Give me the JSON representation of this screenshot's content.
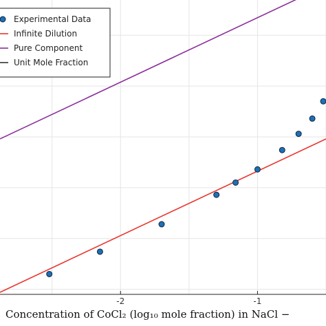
{
  "chart_data": {
    "type": "scatter",
    "xlabel": "Concentration of CoCl₂ (log₁₀ mole fraction) in NaCl −",
    "ylabel": "",
    "title": "",
    "grid": true,
    "legend_position": "top-left",
    "x_ticks": [
      "-2",
      "-1"
    ],
    "series": [
      {
        "name": "Experimental Data",
        "kind": "scatter",
        "color": "#1f6fb5",
        "edge_color": "#0b2740",
        "points": [
          [
            -2.52,
            -2.35
          ],
          [
            -2.15,
            -2.13
          ],
          [
            -1.7,
            -1.86
          ],
          [
            -1.3,
            -1.57
          ],
          [
            -1.16,
            -1.45
          ],
          [
            -1.0,
            -1.32
          ],
          [
            -0.82,
            -1.13
          ],
          [
            -0.7,
            -0.97
          ],
          [
            -0.6,
            -0.82
          ],
          [
            -0.52,
            -0.65
          ]
        ]
      },
      {
        "name": "Infinite Dilution",
        "kind": "line",
        "color": "#e8352e",
        "points": [
          [
            -2.88,
            -2.53
          ],
          [
            -0.5,
            -1.02
          ]
        ]
      },
      {
        "name": "Pure Component",
        "kind": "line",
        "color": "#8a2e9a",
        "points": [
          [
            -2.88,
            -1.02
          ],
          [
            -0.5,
            0.49
          ]
        ]
      },
      {
        "name": "Unit Mole Fraction",
        "kind": "line",
        "color": "#333333",
        "points": []
      }
    ],
    "colors": {
      "grid": "#e5e5e5",
      "axis": "#222222"
    }
  }
}
